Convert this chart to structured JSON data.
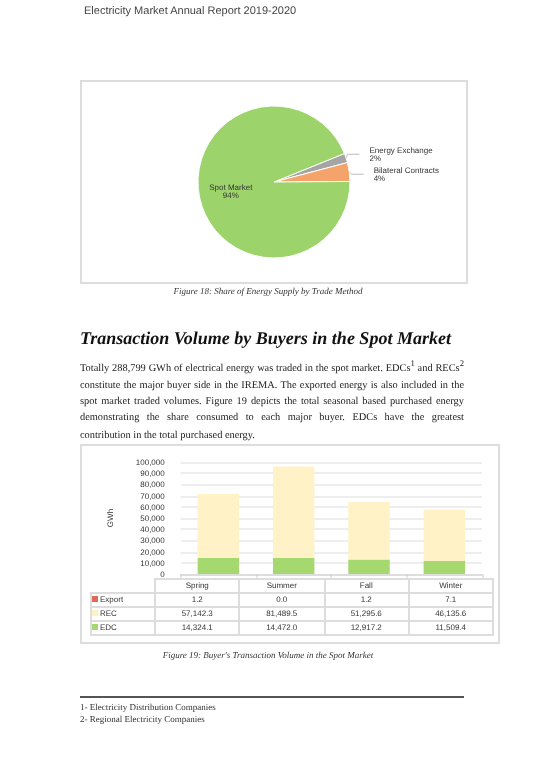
{
  "chart_data": [
    {
      "type": "pie",
      "title": "Figure 18: Share of Energy Supply by Trade Method",
      "annotations": [
        "Electricity Market Annual Report 2019-2020"
      ],
      "categories": [
        "Energy Exchange",
        "Bilateral Contracts",
        "Spot Market"
      ],
      "values": [
        2,
        4,
        94
      ],
      "colors": [
        "#a5a5a5",
        "#f4a46a",
        "#9dd36b"
      ],
      "value_labels": [
        "2%",
        "4%",
        "94%"
      ],
      "legend": false
    },
    {
      "type": "bar",
      "title": "Figure 19: Buyer's Transaction Volume in the Spot Market",
      "subtitle": "Transaction Volume by Buyers in the Spot Market",
      "annotations": [
        "Totally 288,799 GWh of electrical energy was traded in the spot market. EDCs$^{1}$ and RECs$^{2}$ constitute the major buyer side in the IREMA. The exported energy is also included in the spot market traded volumes. Figure 19 depicts the total seasonal based purchased energy demonstrating the share consumed to each major buyer. EDCs have the greatest contribution in the total purchased energy.",
        "1- Electricity Distribution Companies",
        "2- Regional Electricity Companies"
      ],
      "ylabel": "GWh",
      "categories": [
        "Spring",
        "Summer",
        "Fall",
        "Winter"
      ],
      "stacked": true,
      "ylim": [
        0,
        100000
      ],
      "yticks": [
        0,
        {
          "value": 10000,
          "label": "10,000"
        },
        {
          "value": 20000,
          "label": "20,000"
        },
        {
          "value": 30000,
          "label": "30,000"
        },
        {
          "value": 40000,
          "label": "40,000"
        },
        {
          "value": 50000,
          "label": "50,000"
        },
        {
          "value": 60000,
          "label": "60,000"
        },
        {
          "value": 70000,
          "label": "70,000"
        },
        {
          "value": 80000,
          "label": "80,000"
        },
        {
          "value": 90000,
          "label": "90,000"
        },
        {
          "value": 100000,
          "label": "100,000"
        }
      ],
      "grid": "y",
      "legend": "bottom",
      "series": [
        {
          "name": "EDC",
          "color": "#a6d870",
          "values": [
            14324.1,
            14472.0,
            12917.2,
            11509.4
          ],
          "value_labels": [
            "14,324.1",
            "14,472.0",
            "12,917.2",
            "11,509.4"
          ]
        },
        {
          "name": "REC",
          "color": "#fff2c6",
          "values": [
            57142.3,
            81489.5,
            51295.6,
            46135.6
          ],
          "value_labels": [
            "57,142.3",
            "81,489.5",
            "51,295.6",
            "46,135.6"
          ]
        },
        {
          "name": "Export",
          "color": "#e06a5a",
          "values": [
            1.2,
            0.0,
            1.2,
            7.1
          ],
          "value_labels": [
            "1.2",
            "0.0",
            "1.2",
            "7.1"
          ]
        }
      ]
    }
  ]
}
